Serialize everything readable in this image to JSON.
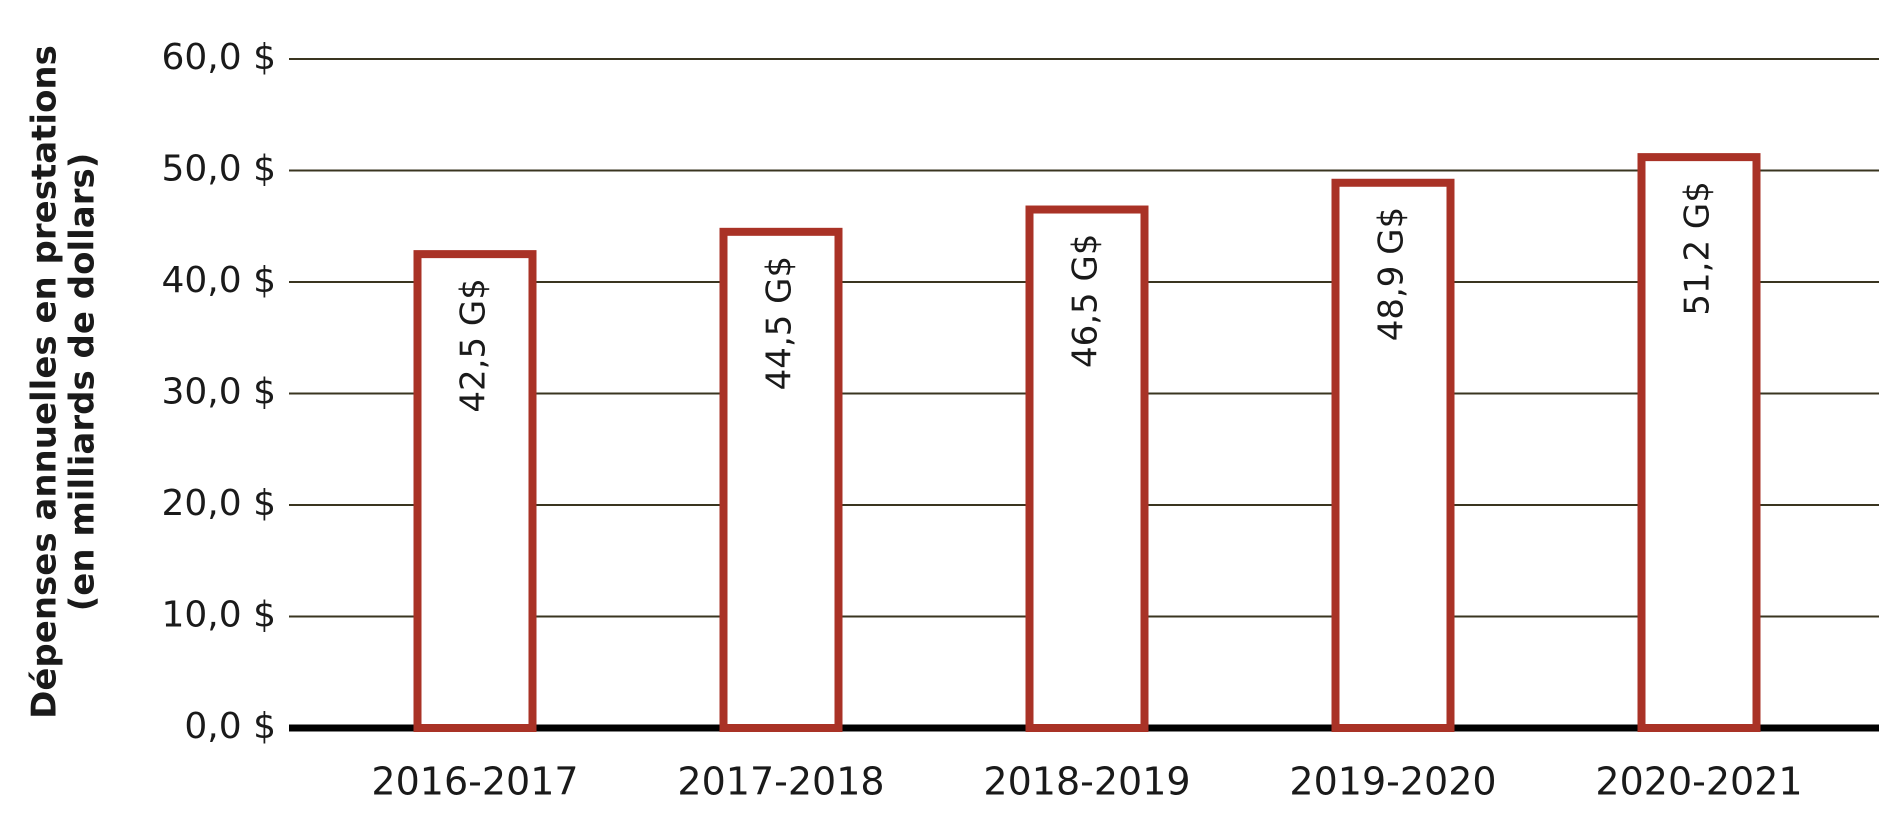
{
  "chart_data": {
    "type": "bar",
    "ylabel": [
      "Dépenses annuelles en prestations",
      "(en milliards de dollars)"
    ],
    "categories": [
      "2016-2017",
      "2017-2018",
      "2018-2019",
      "2019-2020",
      "2020-2021"
    ],
    "values": [
      42.5,
      44.5,
      46.5,
      48.9,
      51.2
    ],
    "value_labels": [
      "42,5 G$",
      "44,5 G$",
      "46,5 G$",
      "48,9 G$",
      "51,2 G$"
    ],
    "color": "#a93226",
    "ylim": [
      0,
      60
    ],
    "yticks": [
      {
        "value": 0,
        "label": "0,0 $"
      },
      {
        "value": 10,
        "label": "10,0 $"
      },
      {
        "value": 20,
        "label": "20,0 $"
      },
      {
        "value": 30,
        "label": "30,0 $"
      },
      {
        "value": 40,
        "label": "40,0 $"
      },
      {
        "value": 50,
        "label": "50,0 $"
      },
      {
        "value": 60,
        "label": "60,0 $"
      }
    ],
    "grid": true
  }
}
